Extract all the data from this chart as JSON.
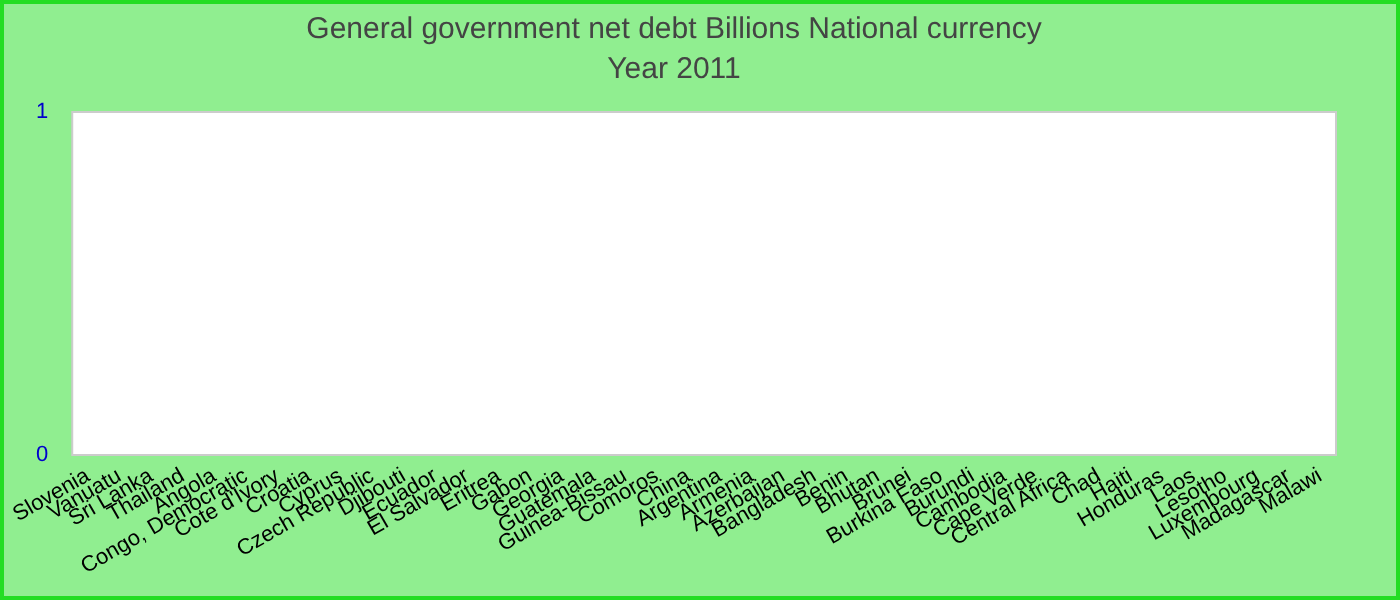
{
  "chart_data": {
    "type": "bar",
    "title": "General government net debt Billions National currency",
    "subtitle": "Year 2011",
    "categories": [
      "Slovenia",
      "Vanuatu",
      "Sri Lanka",
      "Thailand",
      "Angola",
      "Congo, Democratic",
      "Cote d'Ivory",
      "Croatia",
      "Cyprus",
      "Czech Republic",
      "Djibouti",
      "Ecuador",
      "El Salvador",
      "Eritrea",
      "Gabon",
      "Georgia",
      "Guatemala",
      "Guinea-Bissau",
      "Comoros",
      "China",
      "Argentina",
      "Armenia",
      "Azerbaijan",
      "Bangladesh",
      "Benin",
      "Bhutan",
      "Brunei",
      "Burkina Faso",
      "Burundi",
      "Cambodia",
      "Cape Verde",
      "Central Africa",
      "Chad",
      "Haiti",
      "Honduras",
      "Laos",
      "Lesotho",
      "Luxembourg",
      "Madagascar",
      "Malawi"
    ],
    "values": [
      null,
      null,
      null,
      null,
      null,
      null,
      null,
      null,
      null,
      null,
      null,
      null,
      null,
      null,
      null,
      null,
      null,
      null,
      null,
      null,
      null,
      null,
      null,
      null,
      null,
      null,
      null,
      null,
      null,
      null,
      null,
      null,
      null,
      null,
      null,
      null,
      null,
      null,
      null,
      null
    ],
    "ylim": [
      0,
      1
    ],
    "yticks": [
      0,
      1
    ],
    "grid": false,
    "legend": false
  }
}
